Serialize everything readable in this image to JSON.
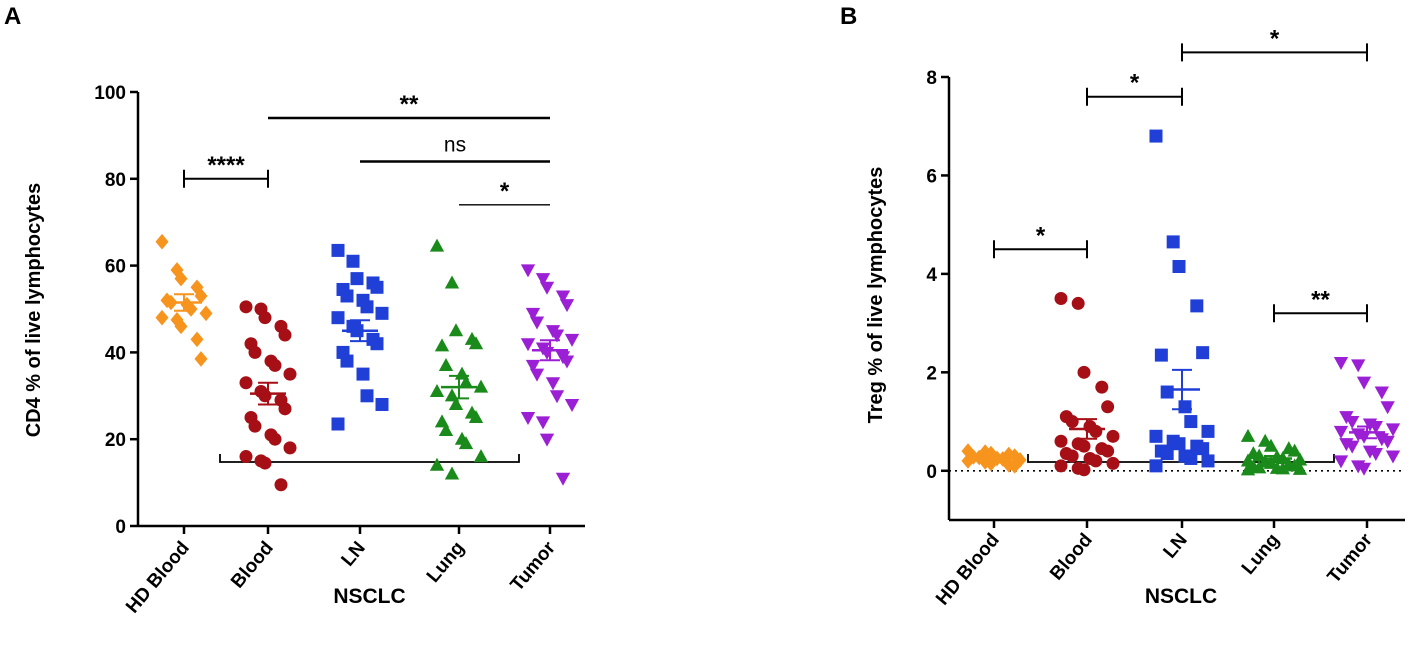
{
  "chart_data": [
    {
      "panel": "A",
      "type": "scatter",
      "title": "",
      "ylabel": "CD4 % of live lymphocytes",
      "xlabel": "",
      "ylim": [
        0,
        100
      ],
      "yticks": [
        0,
        20,
        40,
        60,
        80,
        100
      ],
      "categories": [
        "HD Blood",
        "Blood",
        "LN",
        "Lung",
        "Tumor"
      ],
      "group_label": "NSCLC",
      "group_span": [
        "Blood",
        "Tumor"
      ],
      "series": [
        {
          "name": "HD Blood",
          "color": "#f7941d",
          "marker": "diamond",
          "values": [
            65.5,
            59,
            57,
            55,
            53,
            52,
            51.5,
            51,
            50,
            49,
            48,
            47.5,
            46,
            43,
            38.5
          ],
          "mean": 51.5,
          "sem": 1.9
        },
        {
          "name": "Blood",
          "color": "#a50f15",
          "marker": "circle",
          "values": [
            50.5,
            50,
            48,
            46,
            44,
            42,
            40,
            38,
            37,
            35,
            33,
            31,
            30,
            29,
            27,
            25,
            23,
            21,
            20,
            18,
            16,
            15,
            14.5,
            9.5
          ],
          "mean": 30.5,
          "sem": 2.5
        },
        {
          "name": "LN",
          "color": "#1f3fd6",
          "marker": "square",
          "values": [
            63.5,
            61,
            57,
            56,
            55,
            54.5,
            53,
            52,
            50.5,
            49,
            48,
            46,
            45,
            43,
            42,
            40,
            38,
            35,
            30,
            28,
            23.5
          ],
          "mean": 45,
          "sem": 2.4
        },
        {
          "name": "Lung",
          "color": "#1a8a1a",
          "marker": "triangle-up",
          "values": [
            64.5,
            56,
            45,
            43,
            42,
            41.5,
            37,
            35,
            33,
            32,
            31,
            30,
            28,
            26,
            25,
            24,
            22,
            20,
            19,
            16,
            14,
            12
          ],
          "mean": 32,
          "sem": 2.6
        },
        {
          "name": "Tumor",
          "color": "#9b1fd4",
          "marker": "triangle-down",
          "values": [
            59,
            57,
            55,
            53,
            51,
            49,
            47,
            45,
            44,
            43,
            42,
            41,
            40,
            39,
            38,
            37,
            35,
            33,
            30,
            28,
            25,
            24,
            20,
            11
          ],
          "mean": 40.5,
          "sem": 2.3
        }
      ],
      "significance": [
        {
          "from": "HD Blood",
          "to": "Blood",
          "label": "****",
          "y": 80,
          "style": "bracket"
        },
        {
          "from": "Blood",
          "to": "Tumor",
          "label": "**",
          "y": 94,
          "style": "line"
        },
        {
          "from": "LN",
          "to": "Tumor",
          "label": "ns",
          "y": 84,
          "style": "line"
        },
        {
          "from": "Lung",
          "to": "Tumor",
          "label": "*",
          "y": 74,
          "style": "thin"
        }
      ]
    },
    {
      "panel": "B",
      "type": "scatter",
      "title": "",
      "ylabel": "Treg % of live lymphocytes",
      "xlabel": "",
      "ylim": [
        -1,
        8
      ],
      "yticks": [
        0,
        2,
        4,
        6,
        8
      ],
      "zero_line": "dotted",
      "categories": [
        "HD Blood",
        "Blood",
        "LN",
        "Lung",
        "Tumor"
      ],
      "group_label": "NSCLC",
      "group_span": [
        "Blood",
        "Tumor"
      ],
      "series": [
        {
          "name": "HD Blood",
          "color": "#f7941d",
          "marker": "diamond",
          "values": [
            0.4,
            0.38,
            0.35,
            0.33,
            0.3,
            0.28,
            0.27,
            0.25,
            0.24,
            0.22,
            0.2,
            0.18,
            0.15,
            0.12,
            0.1
          ],
          "mean": 0.25,
          "sem": 0.03
        },
        {
          "name": "Blood",
          "color": "#a50f15",
          "marker": "circle",
          "values": [
            3.5,
            3.4,
            2.0,
            1.7,
            1.3,
            1.1,
            1.0,
            0.9,
            0.8,
            0.7,
            0.6,
            0.55,
            0.5,
            0.45,
            0.4,
            0.35,
            0.3,
            0.25,
            0.2,
            0.15,
            0.1,
            0.05,
            0.02
          ],
          "mean": 0.85,
          "sem": 0.2
        },
        {
          "name": "LN",
          "color": "#1f3fd6",
          "marker": "square",
          "values": [
            6.8,
            4.65,
            4.15,
            3.35,
            2.4,
            2.35,
            1.6,
            1.3,
            1.0,
            0.8,
            0.7,
            0.6,
            0.55,
            0.5,
            0.45,
            0.4,
            0.35,
            0.3,
            0.25,
            0.2,
            0.1
          ],
          "mean": 1.65,
          "sem": 0.4
        },
        {
          "name": "Lung",
          "color": "#1a8a1a",
          "marker": "triangle-up",
          "values": [
            0.7,
            0.6,
            0.5,
            0.45,
            0.4,
            0.35,
            0.3,
            0.28,
            0.25,
            0.22,
            0.2,
            0.18,
            0.15,
            0.12,
            0.1,
            0.08,
            0.06,
            0.05,
            0.04,
            0.03,
            0.02
          ],
          "mean": 0.25,
          "sem": 0.05
        },
        {
          "name": "Tumor",
          "color": "#9b1fd4",
          "marker": "triangle-down",
          "values": [
            2.2,
            2.15,
            1.8,
            1.6,
            1.3,
            1.1,
            1.0,
            0.95,
            0.9,
            0.85,
            0.8,
            0.75,
            0.7,
            0.65,
            0.6,
            0.55,
            0.5,
            0.4,
            0.35,
            0.3,
            0.2,
            0.1,
            0.05
          ],
          "mean": 0.78,
          "sem": 0.12
        }
      ],
      "significance": [
        {
          "from": "HD Blood",
          "to": "Blood",
          "label": "*",
          "y": 4.5,
          "style": "bracket"
        },
        {
          "from": "Blood",
          "to": "LN",
          "label": "*",
          "y": 7.6,
          "style": "bracket"
        },
        {
          "from": "LN",
          "to": "Tumor",
          "label": "*",
          "y": 8.5,
          "style": "bracket"
        },
        {
          "from": "Lung",
          "to": "Tumor",
          "label": "**",
          "y": 3.2,
          "style": "bracket"
        }
      ]
    }
  ]
}
